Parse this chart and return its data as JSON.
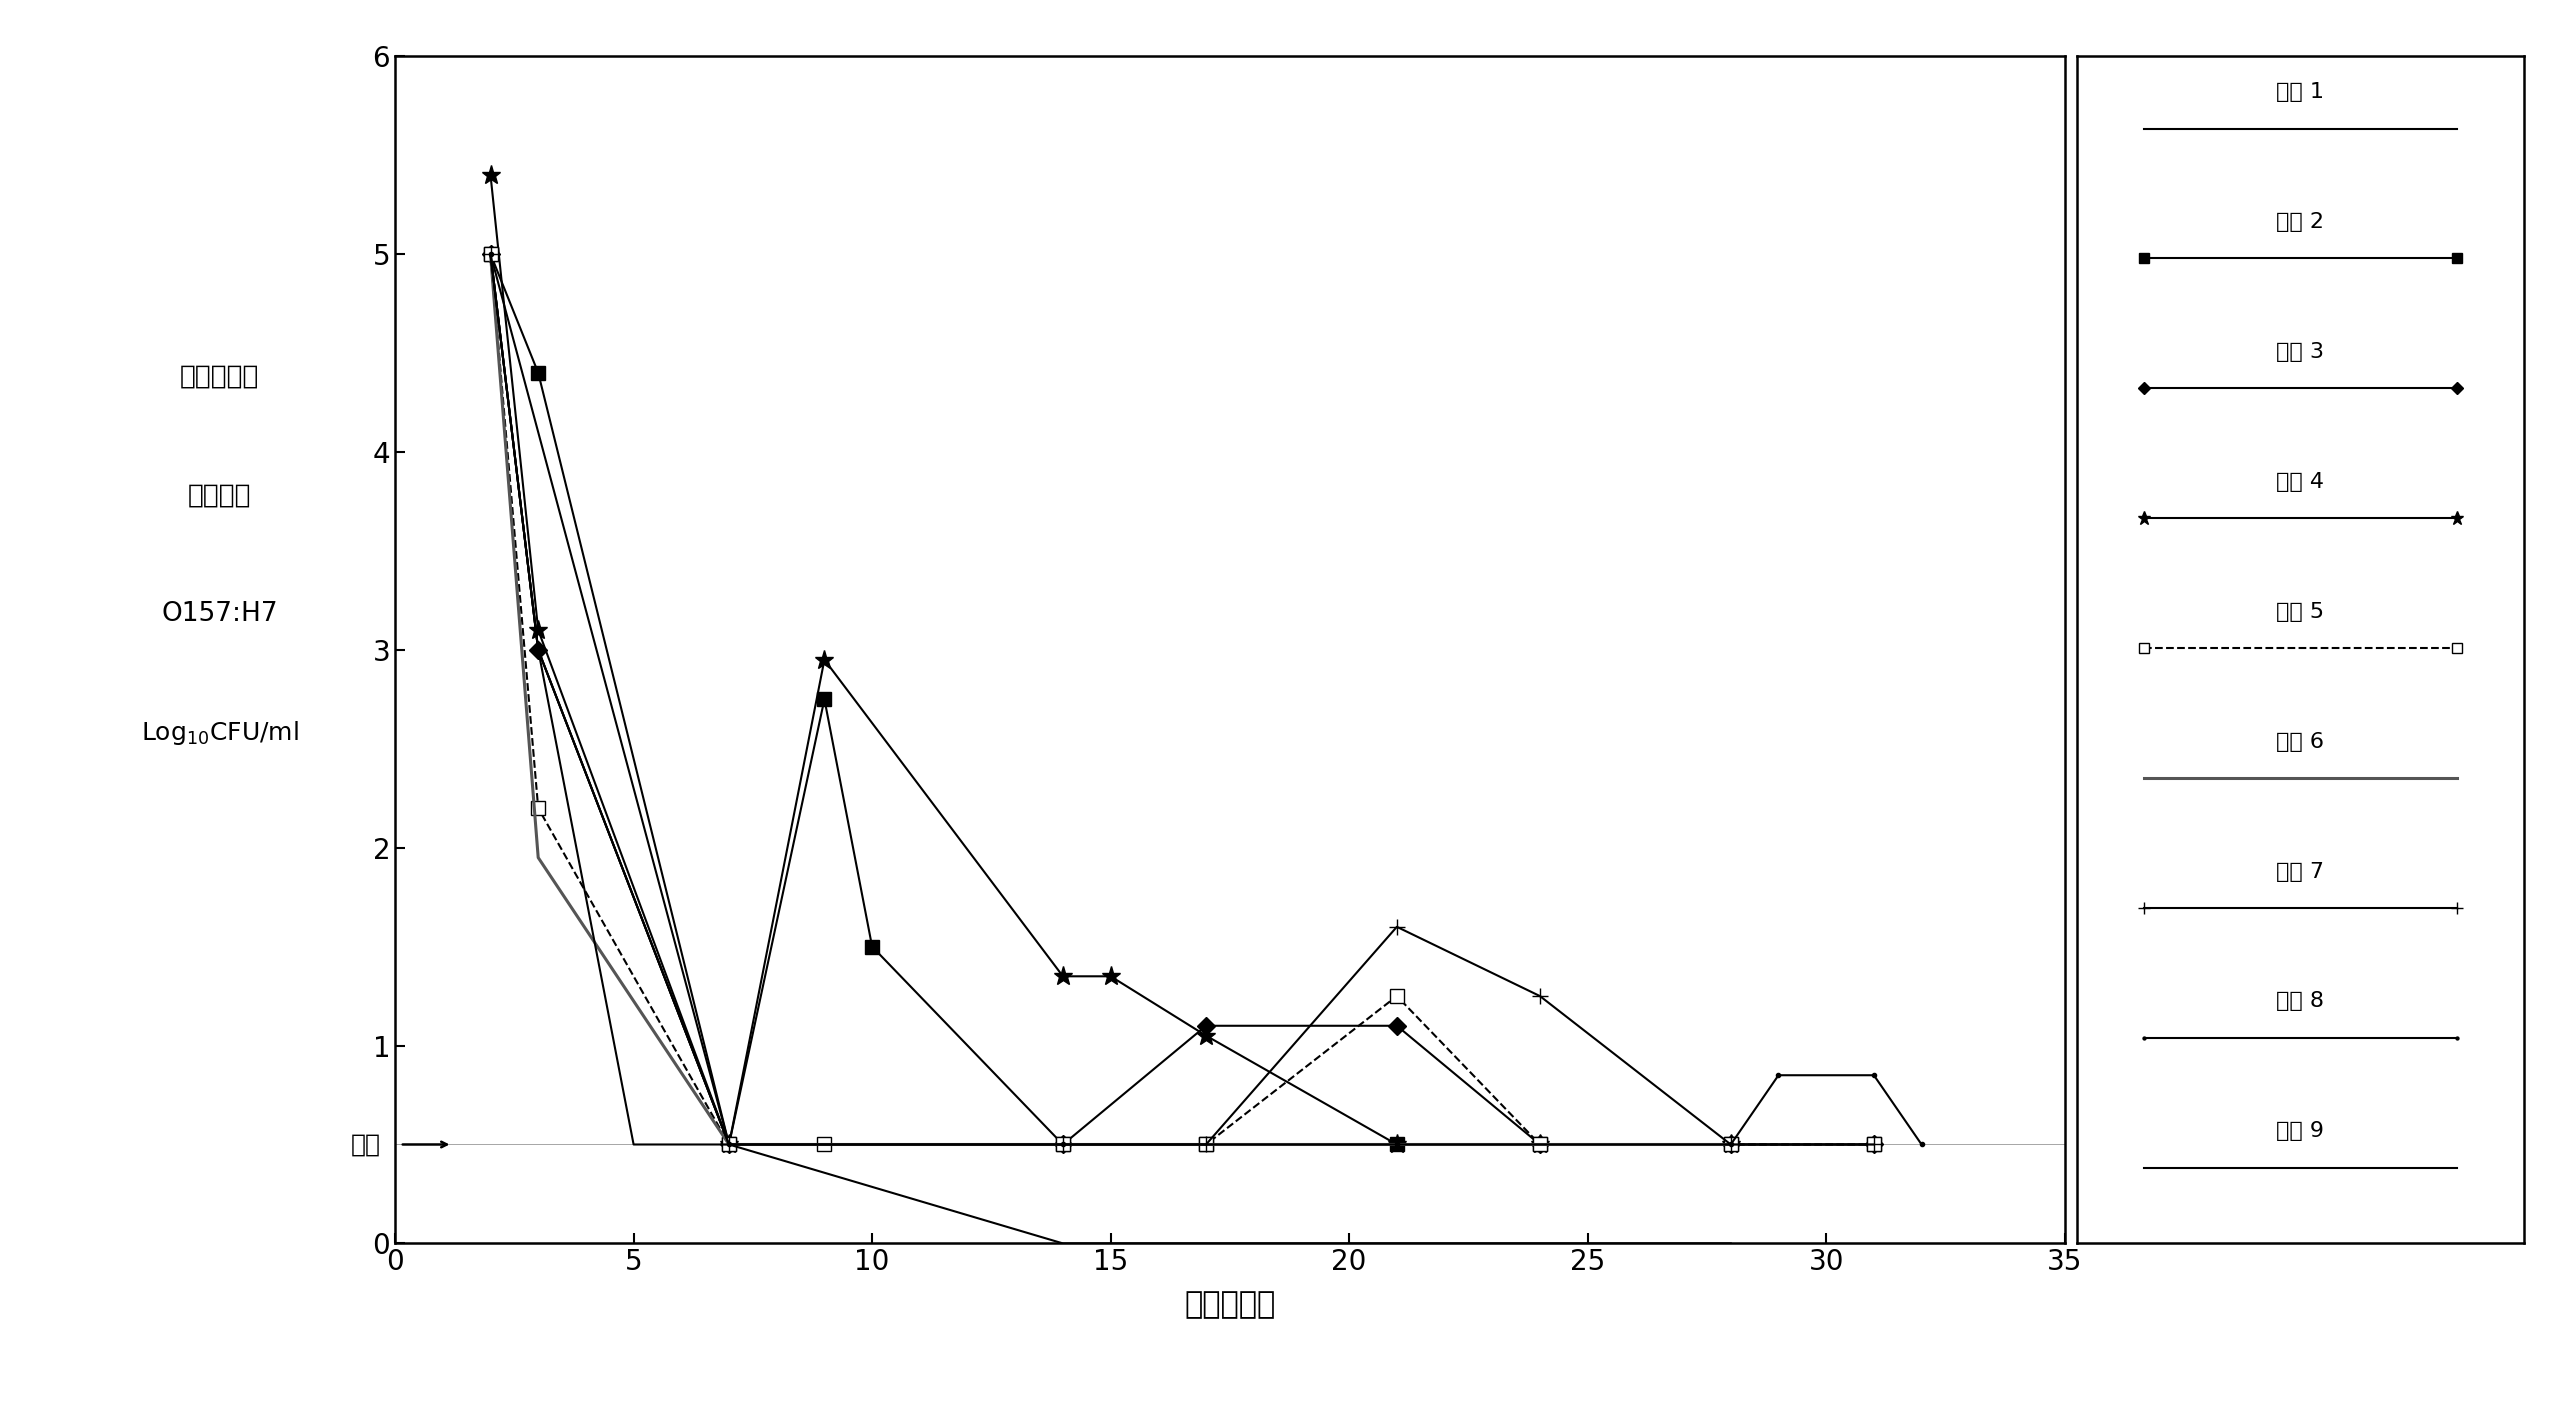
{
  "xlabel": "接种后天数",
  "ylabel_line1": "瘠胃液中的",
  "ylabel_line2": "大肠杆菌",
  "ylabel_line3": "O157:H7",
  "ylabel_line4": "Log",
  "ylabel_line4b": "10",
  "ylabel_line4c": "CFU/ml",
  "xlim": [
    0,
    35
  ],
  "ylim": [
    0,
    6
  ],
  "yticks": [
    0,
    1,
    2,
    3,
    4,
    5,
    6
  ],
  "xticks": [
    0,
    5,
    10,
    15,
    20,
    25,
    30,
    35
  ],
  "detection_limit": 0.5,
  "detection_limit_label": "富集",
  "background_color": "#ffffff",
  "series": [
    {
      "name": "小牛 1",
      "x": [
        2,
        3,
        7,
        14,
        21,
        28
      ],
      "y": [
        5.0,
        4.1,
        0.5,
        0.5,
        0.5,
        0.5
      ],
      "marker": "None",
      "linestyle": "-",
      "color": "#000000",
      "linewidth": 1.5,
      "markersize": 8,
      "markerfacecolor": "#000000"
    },
    {
      "name": "小牛 2",
      "x": [
        2,
        3,
        7,
        9,
        10,
        14,
        17,
        21,
        24,
        28,
        31
      ],
      "y": [
        5.0,
        4.4,
        0.5,
        2.75,
        1.5,
        0.5,
        0.5,
        0.5,
        0.5,
        0.5,
        0.5
      ],
      "marker": "s",
      "linestyle": "-",
      "color": "#000000",
      "linewidth": 1.5,
      "markersize": 10,
      "markerfacecolor": "#000000"
    },
    {
      "name": "小牛 3",
      "x": [
        2,
        3,
        7,
        14,
        17,
        21,
        24,
        28,
        31
      ],
      "y": [
        5.0,
        3.0,
        0.5,
        0.5,
        1.1,
        1.1,
        0.5,
        0.5,
        0.5
      ],
      "marker": "D",
      "linestyle": "-",
      "color": "#000000",
      "linewidth": 1.5,
      "markersize": 9,
      "markerfacecolor": "#000000"
    },
    {
      "name": "小牛 4",
      "x": [
        2,
        3,
        7,
        9,
        14,
        15,
        17,
        21,
        24,
        28
      ],
      "y": [
        5.4,
        3.1,
        0.5,
        2.95,
        1.35,
        1.35,
        1.05,
        0.5,
        0.5,
        0.5
      ],
      "marker": "*",
      "linestyle": "-",
      "color": "#000000",
      "linewidth": 1.5,
      "markersize": 14,
      "markerfacecolor": "#000000"
    },
    {
      "name": "小牛 5",
      "x": [
        2,
        3,
        7,
        9,
        14,
        17,
        21,
        24,
        28,
        31
      ],
      "y": [
        5.0,
        2.2,
        0.5,
        0.5,
        0.5,
        0.5,
        1.25,
        0.5,
        0.5,
        0.5
      ],
      "marker": "s",
      "linestyle": "--",
      "color": "#000000",
      "linewidth": 1.5,
      "markersize": 10,
      "markerfacecolor": "white"
    },
    {
      "name": "小牛 6",
      "x": [
        2,
        3,
        7,
        14,
        21,
        28
      ],
      "y": [
        5.0,
        1.95,
        0.5,
        0.5,
        0.5,
        0.5
      ],
      "marker": "None",
      "linestyle": "-",
      "color": "#555555",
      "linewidth": 2.2,
      "markersize": 8,
      "markerfacecolor": "#555555"
    },
    {
      "name": "小牛 7",
      "x": [
        2,
        3,
        7,
        14,
        17,
        21,
        24,
        28,
        31
      ],
      "y": [
        5.0,
        3.0,
        0.5,
        0.5,
        0.5,
        1.6,
        1.25,
        0.5,
        0.5
      ],
      "marker": "+",
      "linestyle": "-",
      "color": "#000000",
      "linewidth": 1.5,
      "markersize": 12,
      "markerfacecolor": "#000000"
    },
    {
      "name": "小牛 8",
      "x": [
        2,
        3,
        7,
        14,
        21,
        28,
        29,
        31,
        32
      ],
      "y": [
        5.0,
        3.0,
        0.5,
        0.5,
        0.5,
        0.5,
        0.85,
        0.85,
        0.5
      ],
      "marker": ".",
      "linestyle": "-",
      "color": "#000000",
      "linewidth": 1.5,
      "markersize": 6,
      "markerfacecolor": "#000000"
    },
    {
      "name": "小牛 9",
      "x": [
        2,
        3,
        5,
        7,
        14,
        21,
        28
      ],
      "y": [
        5.0,
        3.0,
        0.5,
        0.5,
        0.0,
        0.0,
        0.0
      ],
      "marker": "None",
      "linestyle": "-",
      "color": "#000000",
      "linewidth": 1.5,
      "markersize": 6,
      "markerfacecolor": "#000000"
    }
  ]
}
